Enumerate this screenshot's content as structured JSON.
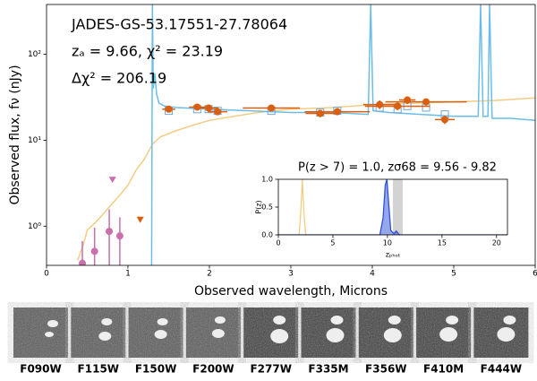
{
  "chart_data": [
    {
      "type": "sed",
      "annotations": [
        "JADES-GS-53.17551-27.78064",
        "zₐ = 9.66, χ² = 23.19",
        "Δχ² = 206.19"
      ],
      "xlabel": "Observed wavelength, Microns",
      "ylabel": "Observed flux, fν (nJy)",
      "xlim": [
        0,
        6
      ],
      "ylim": [
        0.35,
        380
      ],
      "log_y": true,
      "xticks": [
        0,
        1,
        2,
        3,
        4,
        5,
        6
      ],
      "yticks": [
        {
          "value": 1,
          "label": "10⁰"
        },
        {
          "value": 10,
          "label": "10¹"
        },
        {
          "value": 100,
          "label": "10²"
        }
      ],
      "series": [
        {
          "style": "line",
          "color": "#f2cd85",
          "x": [
            0.38,
            0.45,
            0.5,
            0.6,
            0.7,
            0.8,
            0.9,
            1.0,
            1.1,
            1.2,
            1.3,
            1.4,
            1.6,
            1.8,
            2.0,
            2.3,
            2.6,
            3.0,
            3.5,
            4.0,
            4.5,
            5.0,
            5.5,
            6.0
          ],
          "y": [
            0.4,
            0.6,
            0.9,
            1.1,
            1.4,
            1.8,
            2.3,
            3,
            4.5,
            6,
            9,
            11,
            13,
            15,
            17,
            19,
            21,
            23,
            24,
            26,
            27,
            28,
            29,
            31
          ]
        },
        {
          "style": "line",
          "color": "#6bbde8",
          "x": [
            1.29,
            1.3,
            1.31,
            1.33,
            1.35,
            1.38,
            1.45,
            1.6,
            2.0,
            2.5,
            3.0,
            3.5,
            3.95,
            3.98,
            4.01,
            4.2,
            4.6,
            5.0,
            5.3,
            5.33,
            5.36,
            5.42,
            5.44,
            5.47,
            5.7,
            6.0
          ],
          "y": [
            0.35,
            380,
            40,
            60,
            35,
            27,
            25,
            24,
            23,
            22,
            21,
            21,
            20,
            380,
            22,
            21,
            20,
            19,
            19,
            380,
            19,
            19,
            380,
            18,
            18,
            17
          ]
        },
        {
          "style": "squares",
          "color": "#6fa8dc",
          "x": [
            1.5,
            1.85,
            1.99,
            2.1,
            2.76,
            3.36,
            3.57,
            4.09,
            4.31,
            4.43,
            4.66,
            4.89
          ],
          "y": [
            22,
            23,
            23,
            22,
            22,
            21,
            22,
            24,
            23,
            25,
            24,
            20
          ]
        },
        {
          "style": "points",
          "color": "#d95f0e",
          "x": [
            1.5,
            1.85,
            1.99,
            2.1,
            2.76,
            3.36,
            3.57,
            4.09,
            4.31,
            4.43,
            4.66,
            4.89
          ],
          "x_err": [
            0.08,
            0.1,
            0.12,
            0.12,
            0.35,
            0.18,
            0.4,
            0.2,
            0.4,
            0.1,
            0.5,
            0.12
          ],
          "y": [
            23,
            24.3,
            23.7,
            21.5,
            23.7,
            20.5,
            21.5,
            26,
            24.9,
            29.4,
            28,
            17.4
          ],
          "y_err": [
            2,
            2,
            2,
            2,
            1.5,
            2,
            1.5,
            3,
            2.5,
            3,
            2,
            2
          ]
        },
        {
          "style": "points",
          "color": "#c96fa9",
          "x": [
            0.44,
            0.59,
            0.77,
            0.9
          ],
          "y": [
            0.37,
            0.51,
            0.87,
            0.77
          ],
          "y_err": [
            0.3,
            0.45,
            0.7,
            0.5
          ]
        },
        {
          "style": "limits",
          "color": "#c96fa9",
          "x": [
            0.81
          ],
          "y": [
            3.5
          ]
        },
        {
          "style": "limits",
          "color": "#d95f0e",
          "x": [
            1.15
          ],
          "y": [
            1.2
          ]
        }
      ]
    },
    {
      "type": "line",
      "title": "P(z > 7) = 1.0, zσ68 = 9.56 - 9.82",
      "xlabel": "zₚₕₒₜ",
      "ylabel": "P(z)",
      "xlim": [
        0,
        21
      ],
      "ylim": [
        0,
        1
      ],
      "xticks": [
        0,
        5,
        10,
        15,
        20
      ],
      "yticks": [
        {
          "value": 0,
          "label": "0.0"
        },
        {
          "value": 0.5,
          "label": "0.5"
        },
        {
          "value": 1,
          "label": "1.0"
        }
      ],
      "shade": [
        10.5,
        11.4
      ],
      "shade_color": "#d3d3d3",
      "series": [
        {
          "color": "#f2cd85",
          "x": [
            0,
            1.9,
            2.05,
            2.2,
            2.35,
            2.5,
            21
          ],
          "y": [
            0,
            0,
            0.4,
            1.0,
            0.4,
            0,
            0
          ]
        },
        {
          "color": "#3050d8",
          "fill": true,
          "x": [
            0,
            9.3,
            9.6,
            9.8,
            9.95,
            10.1,
            10.3,
            10.6,
            10.8,
            11.1,
            21
          ],
          "y": [
            0,
            0,
            0.3,
            0.9,
            1.0,
            0.6,
            0.08,
            0.02,
            0.07,
            0,
            0
          ]
        }
      ]
    }
  ],
  "thumbnails": {
    "labels": [
      "F090W",
      "F115W",
      "F150W",
      "F200W",
      "F277W",
      "F335M",
      "F356W",
      "F410M",
      "F444W"
    ]
  }
}
